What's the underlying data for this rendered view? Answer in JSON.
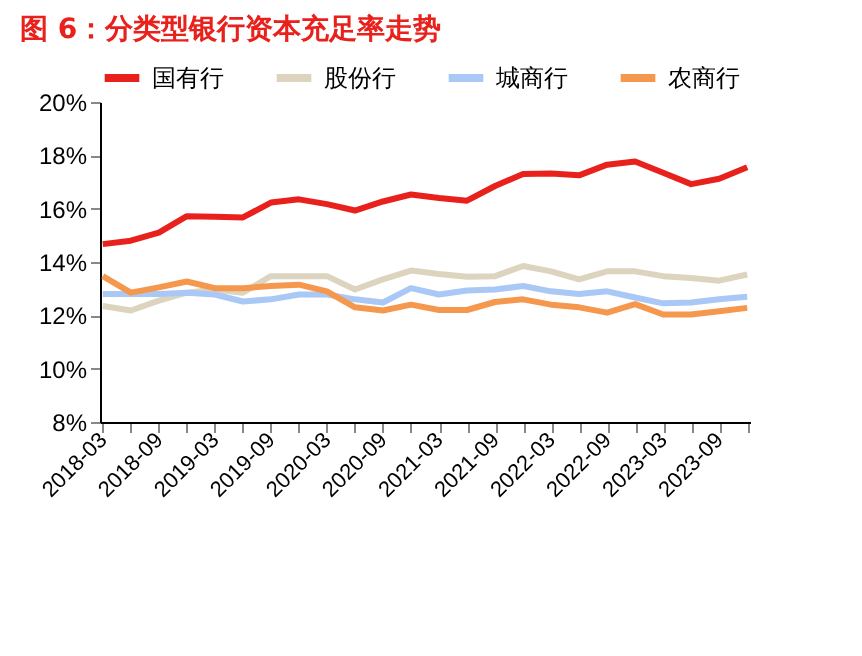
{
  "chart_data": {
    "type": "line",
    "title": "图 6：分类型银行资本充足率走势",
    "categories": [
      "2018-03",
      null,
      "2018-09",
      null,
      "2019-03",
      null,
      "2019-09",
      null,
      "2020-03",
      null,
      "2020-09",
      null,
      "2021-03",
      null,
      "2021-09",
      null,
      "2022-03",
      null,
      "2022-09",
      null,
      "2023-03",
      null,
      "2023-09",
      null
    ],
    "series": [
      {
        "name": "国有行",
        "color": "#e8211c",
        "values": [
          14.67,
          14.8,
          15.1,
          15.72,
          15.7,
          15.67,
          16.23,
          16.35,
          16.17,
          15.93,
          16.27,
          16.53,
          16.4,
          16.3,
          16.85,
          17.3,
          17.32,
          17.25,
          17.65,
          17.77,
          17.35,
          16.92,
          17.12,
          17.55
        ]
      },
      {
        "name": "股份行",
        "color": "#ddd4bf",
        "values": [
          12.35,
          12.18,
          12.55,
          12.85,
          12.97,
          12.85,
          13.47,
          13.47,
          13.47,
          12.97,
          13.35,
          13.68,
          13.55,
          13.45,
          13.47,
          13.85,
          13.65,
          13.35,
          13.65,
          13.65,
          13.47,
          13.4,
          13.3,
          13.53
        ]
      },
      {
        "name": "城商行",
        "color": "#a9c8f5",
        "values": [
          12.8,
          12.8,
          12.8,
          12.85,
          12.78,
          12.52,
          12.6,
          12.78,
          12.78,
          12.6,
          12.48,
          13.02,
          12.78,
          12.93,
          12.97,
          13.1,
          12.9,
          12.8,
          12.9,
          12.67,
          12.45,
          12.48,
          12.6,
          12.7
        ]
      },
      {
        "name": "农商行",
        "color": "#f5984e",
        "values": [
          13.47,
          12.85,
          13.05,
          13.27,
          13.02,
          13.02,
          13.1,
          13.15,
          12.9,
          12.3,
          12.18,
          12.4,
          12.2,
          12.2,
          12.5,
          12.6,
          12.4,
          12.3,
          12.1,
          12.42,
          12.03,
          12.03,
          12.15,
          12.28
        ]
      }
    ],
    "ylim": [
      8,
      20
    ],
    "yticks": [
      {
        "value": 8,
        "label": "8%"
      },
      {
        "value": 10,
        "label": "10%"
      },
      {
        "value": 12,
        "label": "12%"
      },
      {
        "value": 14,
        "label": "14%"
      },
      {
        "value": 16,
        "label": "16%"
      },
      {
        "value": 18,
        "label": "18%"
      },
      {
        "value": 20,
        "label": "20%"
      }
    ],
    "grid": false,
    "legend": "top",
    "line_style": "solid"
  }
}
